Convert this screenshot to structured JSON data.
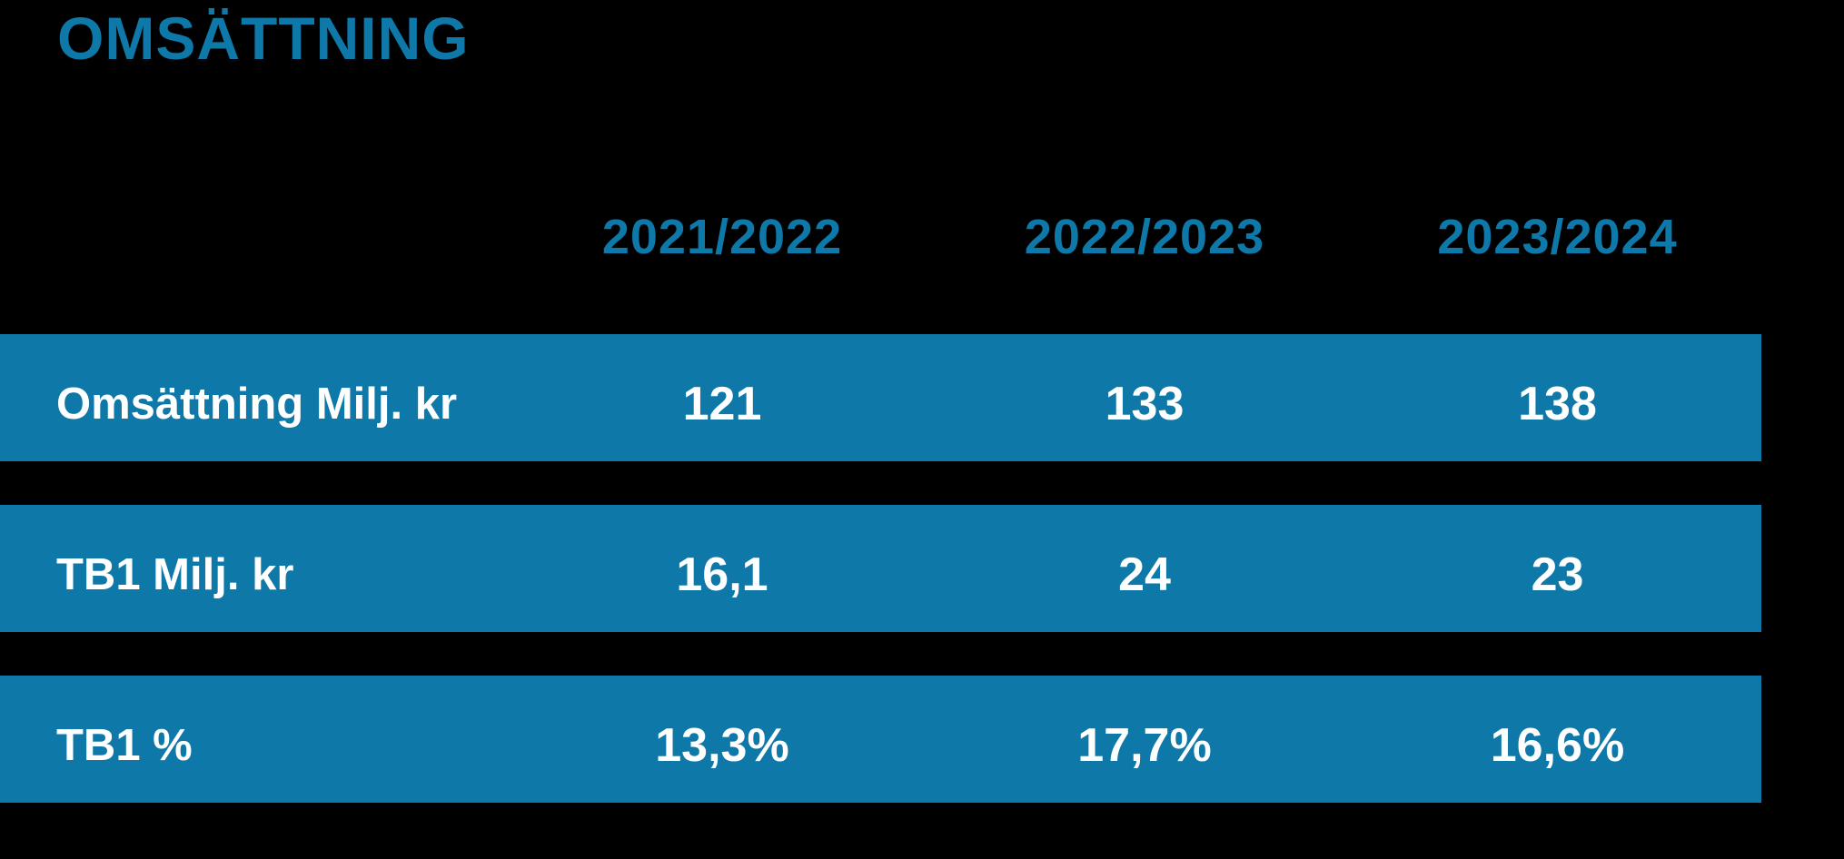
{
  "colors": {
    "background": "#000000",
    "accent": "#0e78a8",
    "row_text": "#ffffff"
  },
  "title": "OMSÄTTNING",
  "table": {
    "column_headers": [
      "2021/2022",
      "2022/2023",
      "2023/2024"
    ],
    "rows": [
      {
        "label": "Omsättning Milj. kr",
        "values": [
          "121",
          "133",
          "138"
        ]
      },
      {
        "label": "TB1 Milj. kr",
        "values": [
          "16,1",
          "24",
          "23"
        ]
      },
      {
        "label": "TB1 %",
        "values": [
          "13,3%",
          "17,7%",
          "16,6%"
        ]
      }
    ]
  },
  "chart_data": {
    "type": "table",
    "title": "OMSÄTTNING",
    "categories": [
      "2021/2022",
      "2022/2023",
      "2023/2024"
    ],
    "series": [
      {
        "name": "Omsättning Milj. kr",
        "values": [
          121,
          133,
          138
        ],
        "unit": "Milj. kr"
      },
      {
        "name": "TB1 Milj. kr",
        "values": [
          16.1,
          24,
          23
        ],
        "unit": "Milj. kr"
      },
      {
        "name": "TB1 %",
        "values": [
          13.3,
          17.7,
          16.6
        ],
        "unit": "%"
      }
    ],
    "legend_position": "none",
    "grid": false
  }
}
